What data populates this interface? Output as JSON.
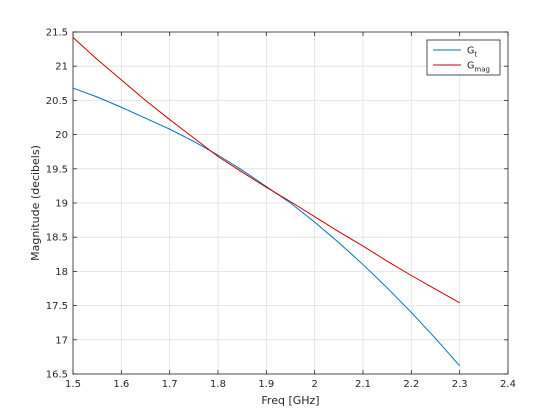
{
  "chart_data": {
    "type": "line",
    "xlabel": "Freq [GHz]",
    "ylabel": "Magnitude (decibels)",
    "xlim": [
      1.5,
      2.4
    ],
    "ylim": [
      16.5,
      21.5
    ],
    "xticks": [
      1.5,
      1.6,
      1.7,
      1.8,
      1.9,
      2.0,
      2.1,
      2.2,
      2.3,
      2.4
    ],
    "xtick_labels": [
      "1.5",
      "1.6",
      "1.7",
      "1.8",
      "1.9",
      "2",
      "2.1",
      "2.2",
      "2.3",
      "2.4"
    ],
    "yticks": [
      16.5,
      17,
      17.5,
      18,
      18.5,
      19,
      19.5,
      20,
      20.5,
      21,
      21.5
    ],
    "ytick_labels": [
      "16.5",
      "17",
      "17.5",
      "18",
      "18.5",
      "19",
      "19.5",
      "20",
      "20.5",
      "21",
      "21.5"
    ],
    "grid": true,
    "legend_position": "top-right",
    "series": [
      {
        "name_base": "G",
        "name_sub": "t",
        "color": "#0072bd",
        "x": [
          1.5,
          1.55,
          1.6,
          1.65,
          1.7,
          1.75,
          1.8,
          1.85,
          1.9,
          1.95,
          2.0,
          2.05,
          2.1,
          2.15,
          2.2,
          2.25,
          2.3
        ],
        "y": [
          20.68,
          20.55,
          20.4,
          20.24,
          20.08,
          19.9,
          19.7,
          19.48,
          19.24,
          19.0,
          18.72,
          18.42,
          18.1,
          17.76,
          17.4,
          17.02,
          16.62
        ]
      },
      {
        "name_base": "G",
        "name_sub": "mag",
        "color": "#d95319",
        "line_color": "#cc0000",
        "x": [
          1.5,
          1.55,
          1.6,
          1.65,
          1.7,
          1.75,
          1.8,
          1.85,
          1.9,
          1.95,
          2.0,
          2.05,
          2.1,
          2.15,
          2.2,
          2.25,
          2.3
        ],
        "y": [
          21.42,
          21.1,
          20.8,
          20.5,
          20.22,
          19.95,
          19.68,
          19.45,
          19.23,
          19.02,
          18.8,
          18.58,
          18.37,
          18.15,
          17.94,
          17.74,
          17.54
        ]
      }
    ]
  }
}
